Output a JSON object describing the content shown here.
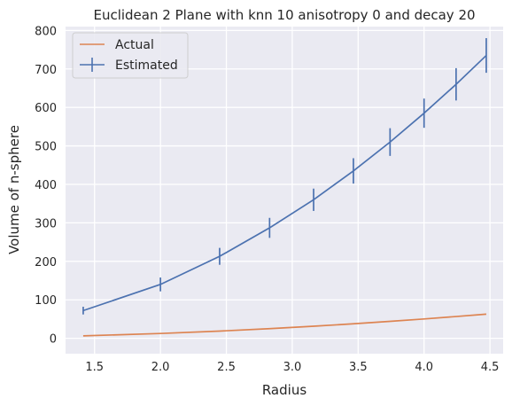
{
  "chart_data": {
    "type": "line",
    "title": "Euclidean 2 Plane with knn 10 anisotropy 0 and decay 20",
    "xlabel": "Radius",
    "ylabel": "Volume of n-sphere",
    "xlim": [
      1.28,
      4.6
    ],
    "ylim": [
      -40,
      810
    ],
    "xticks": [
      1.5,
      2.0,
      2.5,
      3.0,
      3.5,
      4.0,
      4.5
    ],
    "xtick_labels": [
      "1.5",
      "2.0",
      "2.5",
      "3.0",
      "3.5",
      "4.0",
      "4.5"
    ],
    "yticks": [
      0,
      100,
      200,
      300,
      400,
      500,
      600,
      700,
      800
    ],
    "ytick_labels": [
      "0",
      "100",
      "200",
      "300",
      "400",
      "500",
      "600",
      "700",
      "800"
    ],
    "grid": true,
    "legend_position": "top-left",
    "series": [
      {
        "name": "Actual",
        "color": "#dd8452",
        "x": [
          1.414,
          2.0,
          2.449,
          2.828,
          3.162,
          3.464,
          3.742,
          4.0,
          4.243,
          4.472
        ],
        "y": [
          6.3,
          12.6,
          18.8,
          25.1,
          31.4,
          37.7,
          44.0,
          50.3,
          56.6,
          62.8
        ]
      },
      {
        "name": "Estimated",
        "color": "#4c72b0",
        "x": [
          1.414,
          2.0,
          2.449,
          2.828,
          3.162,
          3.464,
          3.742,
          4.0,
          4.243,
          4.472
        ],
        "y": [
          72,
          140,
          213,
          287,
          360,
          435,
          510,
          585,
          660,
          735
        ],
        "yerr": [
          10,
          18,
          22,
          26,
          29,
          33,
          36,
          38,
          42,
          45
        ]
      }
    ]
  }
}
